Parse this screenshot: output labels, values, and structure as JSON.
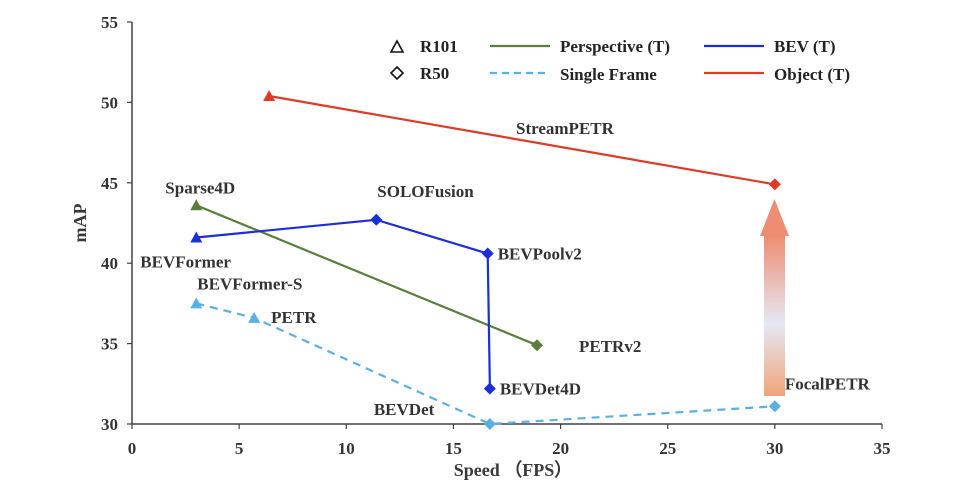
{
  "chart_data": {
    "type": "line",
    "title": "",
    "xlabel": "Speed （FPS）",
    "ylabel": "mAP",
    "xlim": [
      0,
      35
    ],
    "ylim": [
      30,
      55
    ],
    "x_ticks": [
      "0",
      "5",
      "10",
      "15",
      "20",
      "25",
      "30",
      "35"
    ],
    "y_ticks": [
      "30",
      "35",
      "40",
      "45",
      "50",
      "55"
    ],
    "grid": false,
    "legend": {
      "position": "top-right",
      "markers": [
        {
          "name": "R101",
          "shape": "triangle"
        },
        {
          "name": "R50",
          "shape": "diamond"
        }
      ],
      "lines": [
        {
          "name": "Perspective (T)",
          "color": "#5a7f3c",
          "dashed": false
        },
        {
          "name": "Single Frame",
          "color": "#5ab0e4",
          "dashed": true
        },
        {
          "name": "BEV (T)",
          "color": "#1a2fd6",
          "dashed": false
        },
        {
          "name": "Object (T)",
          "color": "#e03a25",
          "dashed": false
        }
      ]
    },
    "series": [
      {
        "name": "Object (T)",
        "color": "#e03a25",
        "dashed": false,
        "points": [
          {
            "x": 6.4,
            "y": 50.4,
            "marker": "triangle",
            "label": ""
          },
          {
            "x": 30.0,
            "y": 44.9,
            "marker": "diamond",
            "label": ""
          }
        ]
      },
      {
        "name": "Perspective (T)",
        "color": "#5a7f3c",
        "dashed": false,
        "points": [
          {
            "x": 3.0,
            "y": 43.6,
            "marker": "triangle",
            "label": "Sparse4D"
          },
          {
            "x": 18.9,
            "y": 34.9,
            "marker": "diamond",
            "label": "PETRv2"
          }
        ]
      },
      {
        "name": "BEV (T)",
        "color": "#1a2fd6",
        "dashed": false,
        "points": [
          {
            "x": 3.0,
            "y": 41.6,
            "marker": "triangle",
            "label": "BEVFormer"
          },
          {
            "x": 11.4,
            "y": 42.7,
            "marker": "diamond",
            "label": "SOLOFusion"
          },
          {
            "x": 16.6,
            "y": 40.6,
            "marker": "diamond",
            "label": "BEVPoolv2"
          },
          {
            "x": 16.7,
            "y": 32.2,
            "marker": "diamond",
            "label": "BEVDet4D"
          }
        ]
      },
      {
        "name": "Single Frame",
        "color": "#5ab0e4",
        "dashed": true,
        "points": [
          {
            "x": 3.0,
            "y": 37.5,
            "marker": "triangle",
            "label": "BEVFormer-S"
          },
          {
            "x": 5.7,
            "y": 36.6,
            "marker": "triangle",
            "label": "PETR"
          },
          {
            "x": 16.7,
            "y": 30.0,
            "marker": "diamond",
            "label": "BEVDet"
          },
          {
            "x": 30.0,
            "y": 31.1,
            "marker": "diamond",
            "label": "FocalPETR"
          }
        ]
      }
    ],
    "annotations": [
      {
        "text": "StreamPETR"
      },
      {
        "type": "arrow",
        "from": {
          "x": 30.0,
          "y": 32.0
        },
        "to": {
          "x": 30.0,
          "y": 44.0
        }
      }
    ]
  }
}
